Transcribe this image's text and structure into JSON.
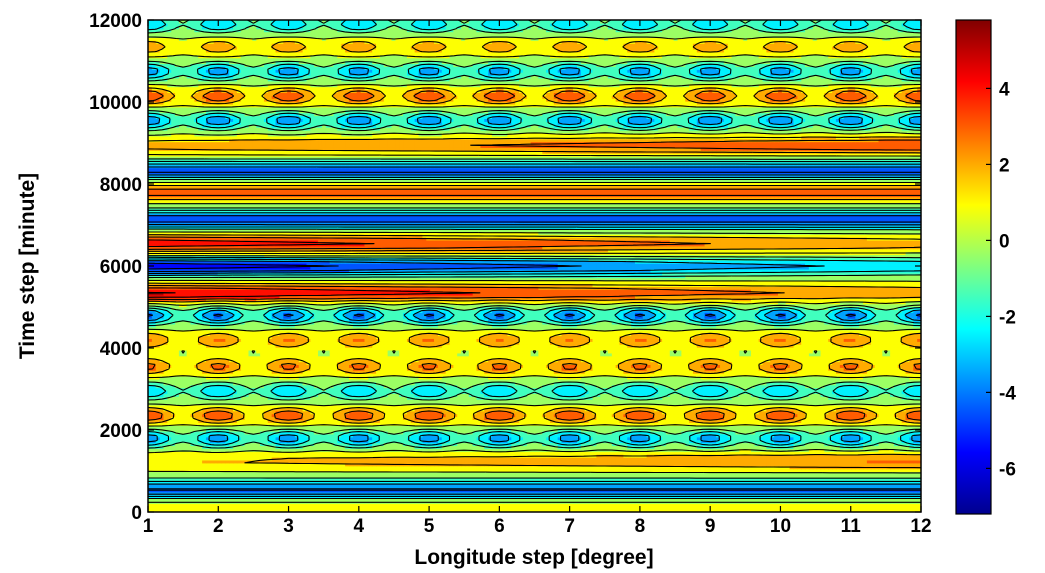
{
  "chart_data": {
    "type": "heatmap",
    "title": "",
    "xlabel": "Longitude step [degree]",
    "ylabel": "Time step [minute]",
    "xlim": [
      1,
      12
    ],
    "ylim": [
      0,
      12000
    ],
    "x_ticks": [
      "1",
      "2",
      "3",
      "4",
      "5",
      "6",
      "7",
      "8",
      "9",
      "10",
      "11",
      "12"
    ],
    "y_ticks": [
      "0",
      "2000",
      "4000",
      "6000",
      "8000",
      "10000",
      "12000"
    ],
    "colorbar": {
      "range": [
        -7.2,
        5.8
      ],
      "ticks": [
        "4",
        "2",
        "0",
        "-2",
        "-4",
        "-6"
      ],
      "colormap": "jet"
    },
    "contour_lines": "black",
    "bands": [
      {
        "y": 150,
        "amp": 1.2,
        "profile": "flat"
      },
      {
        "y": 550,
        "amp": -4.2,
        "profile": "flat"
      },
      {
        "y": 1250,
        "amp": 2.6,
        "profile": "rise"
      },
      {
        "y": 1800,
        "amp": -3.6,
        "profile": "alt"
      },
      {
        "y": 2350,
        "amp": 3.4,
        "profile": "alt"
      },
      {
        "y": 2950,
        "amp": -3.0,
        "profile": "alt"
      },
      {
        "y": 3550,
        "amp": 2.8,
        "profile": "alt"
      },
      {
        "y": 4200,
        "amp": 2.6,
        "profile": "alt"
      },
      {
        "y": 4800,
        "amp": -4.2,
        "profile": "alt"
      },
      {
        "y": 5350,
        "amp": 4.6,
        "profile": "fall"
      },
      {
        "y": 6000,
        "amp": -5.8,
        "profile": "fall"
      },
      {
        "y": 6550,
        "amp": 4.2,
        "profile": "fall"
      },
      {
        "y": 7150,
        "amp": -4.6,
        "profile": "flat"
      },
      {
        "y": 7800,
        "amp": 2.9,
        "profile": "flat"
      },
      {
        "y": 8350,
        "amp": -4.4,
        "profile": "flat"
      },
      {
        "y": 8950,
        "amp": 3.4,
        "profile": "rise"
      },
      {
        "y": 9550,
        "amp": -3.8,
        "profile": "alt"
      },
      {
        "y": 10150,
        "amp": 3.4,
        "profile": "alt"
      },
      {
        "y": 10750,
        "amp": -3.6,
        "profile": "alt"
      },
      {
        "y": 11350,
        "amp": 2.2,
        "profile": "alt"
      },
      {
        "y": 11900,
        "amp": -3.0,
        "profile": "alt"
      }
    ]
  }
}
